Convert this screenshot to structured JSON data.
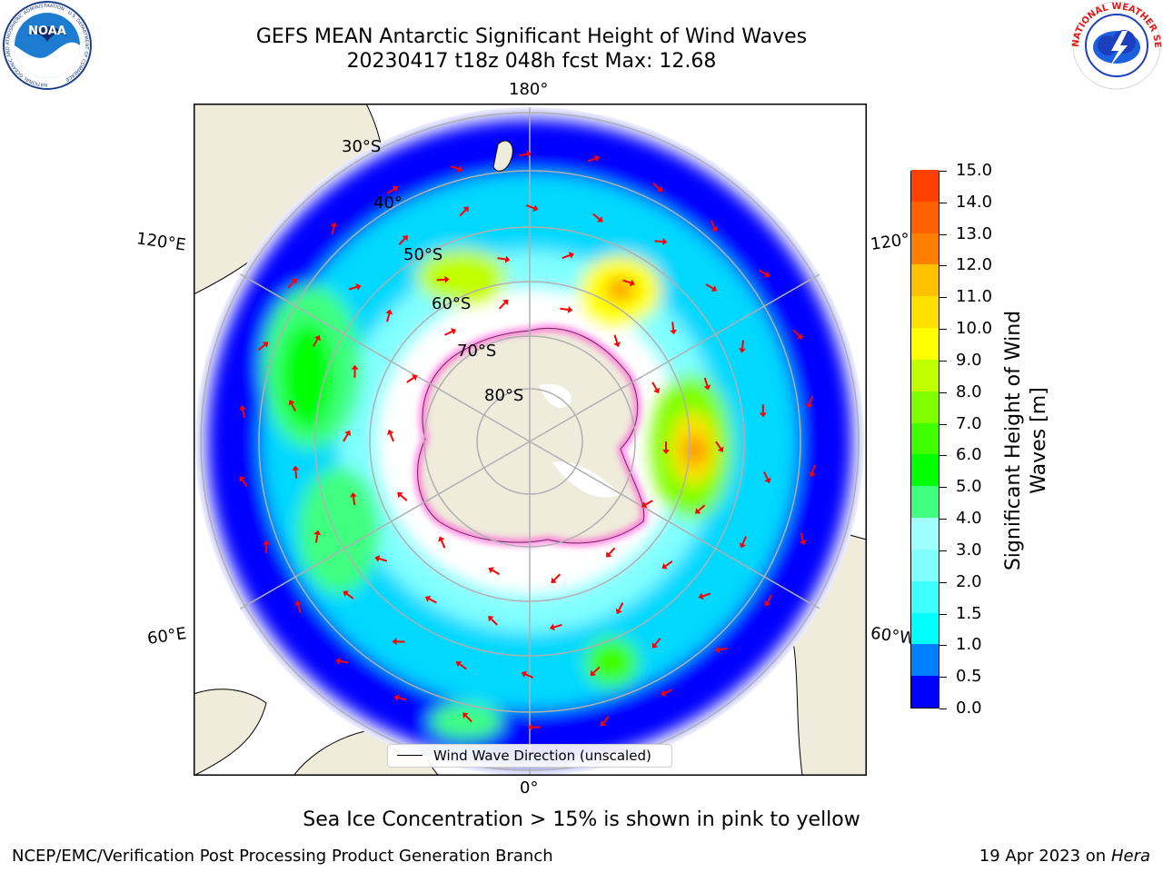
{
  "header": {
    "title": "GEFS MEAN Antarctic Significant Height of Wind Waves",
    "subtitle": "20230417 t18z 048h fcst   Max: 12.68"
  },
  "logos": {
    "noaa": {
      "text": "NOAA",
      "ring_text": "NATIONAL OCEANIC AND ATMOSPHERIC ADMINISTRATION · U.S. DEPARTMENT OF COMMERCE"
    },
    "nws": {
      "ring_text": "NATIONAL WEATHER SERVICE"
    }
  },
  "map": {
    "projection": "south-polar-stereographic",
    "longitude_labels": {
      "top": "180°",
      "bottom": "0°",
      "left_upper": "120°E",
      "left_lower": "60°E",
      "right_upper": "120°",
      "right_lower": "60°W"
    },
    "latitude_labels": [
      "30°S",
      "40°",
      "50°S",
      "60°S",
      "70°S",
      "80°S"
    ],
    "colors": {
      "land": "#efecdc",
      "grid": "#b0b0b0",
      "arrows": "#ff0000",
      "ice_edge": "#ff40d0"
    }
  },
  "colorbar": {
    "label_line1": "Significant Height of Wind",
    "label_line2": "Waves [m]",
    "tick_labels": [
      "0.0",
      "0.5",
      "1.0",
      "1.5",
      "2.0",
      "3.0",
      "4.0",
      "5.0",
      "6.0",
      "7.0",
      "8.0",
      "9.0",
      "10.0",
      "11.0",
      "12.0",
      "13.0",
      "14.0",
      "15.0"
    ],
    "colors": [
      "#0000ff",
      "#0080ff",
      "#00ffff",
      "#40ffff",
      "#80ffff",
      "#a0ffff",
      "#40ff80",
      "#00ff00",
      "#40ff00",
      "#80ff00",
      "#c0ff00",
      "#ffff00",
      "#ffe000",
      "#ffc000",
      "#ff8000",
      "#ff6000",
      "#ff4000",
      "#ff0000"
    ]
  },
  "legend": {
    "label": "Wind Wave Direction (unscaled)"
  },
  "note": "Sea Ice Concentration > 15% is shown in pink to yellow",
  "footer": {
    "left": "NCEP/EMC/Verification Post Processing Product Generation Branch",
    "date": "19 Apr 2023 on",
    "host": "Hera"
  }
}
